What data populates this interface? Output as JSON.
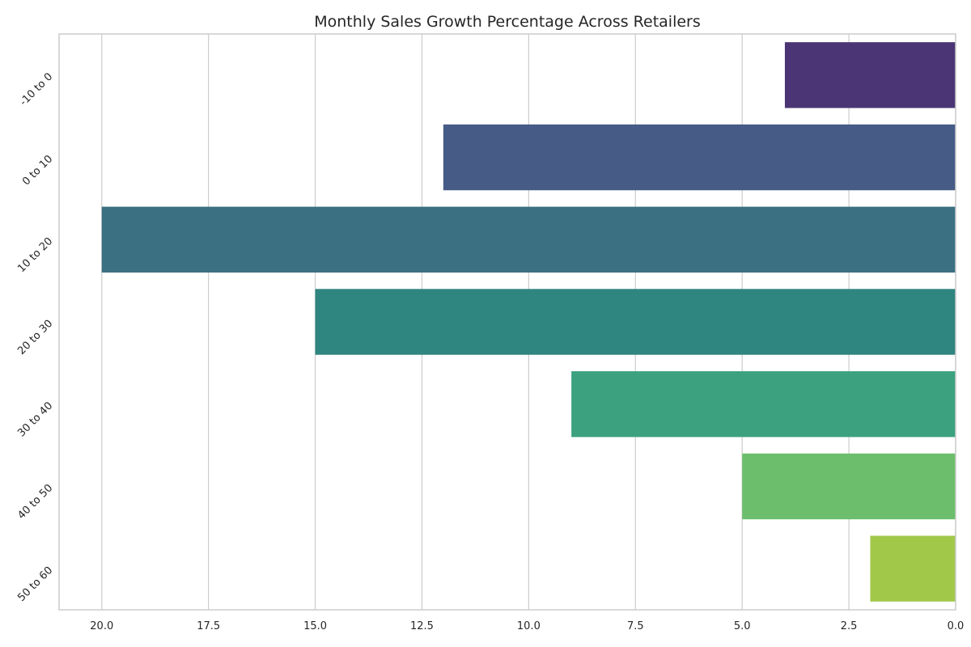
{
  "chart_data": {
    "type": "bar",
    "orientation": "horizontal",
    "title": "Monthly Sales Growth Percentage Across Retailers",
    "xlabel": "",
    "ylabel": "",
    "categories": [
      "-10 to 0",
      "0 to 10",
      "10 to 20",
      "20 to 30",
      "30 to 40",
      "40 to 50",
      "50 to 60"
    ],
    "values": [
      4,
      12,
      20,
      15,
      9,
      5,
      2
    ],
    "colors": [
      "#4b3574",
      "#465b86",
      "#3b6f82",
      "#2f857f",
      "#3ba17e",
      "#6cbe6d",
      "#a2c84a"
    ],
    "xlim": [
      21,
      0
    ],
    "x_inverted": true,
    "x_ticks": [
      20.0,
      17.5,
      15.0,
      12.5,
      10.0,
      7.5,
      5.0,
      2.5,
      0.0
    ],
    "x_tick_labels": [
      "20.0",
      "17.5",
      "15.0",
      "12.5",
      "10.0",
      "7.5",
      "5.0",
      "2.5",
      "0.0"
    ],
    "grid": "vertical",
    "legend": "none"
  }
}
